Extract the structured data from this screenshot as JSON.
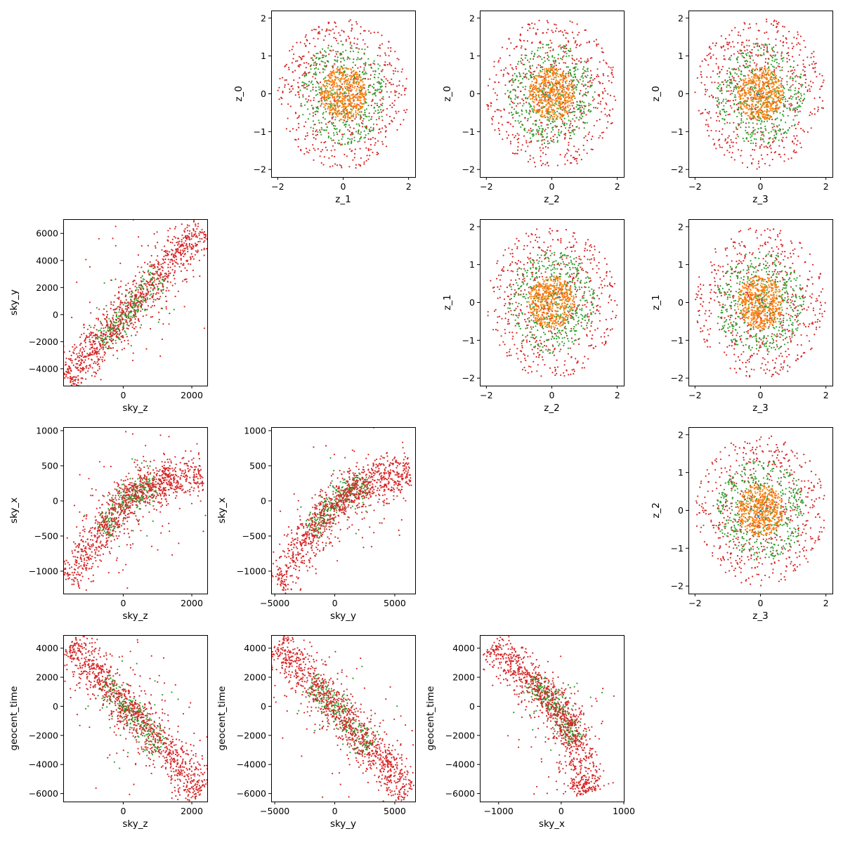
{
  "colors": {
    "red": "#d62728",
    "green": "#2ca02c",
    "orange": "#ff7f0e",
    "blue": "#1f77b4",
    "axis": "#000000"
  },
  "chart_data": [
    {
      "row": 0,
      "col": 1,
      "type": "scatter",
      "shape": "disk",
      "xlabel": "z_1",
      "ylabel": "z_0",
      "xlim": [
        -2.2,
        2.2
      ],
      "ylim": [
        -2.2,
        2.2
      ],
      "xticks": [
        -2,
        0,
        2
      ],
      "yticks": [
        -2,
        -1,
        0,
        1,
        2
      ],
      "radii": {
        "red": 2.0,
        "green": 1.35,
        "orange": 0.7
      },
      "counts": {
        "red": 600,
        "green": 450,
        "orange": 500
      }
    },
    {
      "row": 0,
      "col": 2,
      "type": "scatter",
      "shape": "disk",
      "xlabel": "z_2",
      "ylabel": "z_0",
      "xlim": [
        -2.2,
        2.2
      ],
      "ylim": [
        -2.2,
        2.2
      ],
      "xticks": [
        -2,
        0,
        2
      ],
      "yticks": [
        -2,
        -1,
        0,
        1,
        2
      ],
      "radii": {
        "red": 2.0,
        "green": 1.35,
        "orange": 0.7
      },
      "counts": {
        "red": 600,
        "green": 450,
        "orange": 500
      }
    },
    {
      "row": 0,
      "col": 3,
      "type": "scatter",
      "shape": "disk",
      "xlabel": "z_3",
      "ylabel": "z_0",
      "xlim": [
        -2.2,
        2.2
      ],
      "ylim": [
        -2.2,
        2.2
      ],
      "xticks": [
        -2,
        0,
        2
      ],
      "yticks": [
        -2,
        -1,
        0,
        1,
        2
      ],
      "radii": {
        "red": 2.0,
        "green": 1.35,
        "orange": 0.7
      },
      "counts": {
        "red": 600,
        "green": 450,
        "orange": 500
      }
    },
    {
      "row": 1,
      "col": 0,
      "type": "scatter",
      "shape": "band",
      "xlabel": "sky_z",
      "ylabel": "sky_y",
      "xlim": [
        -1750,
        2450
      ],
      "ylim": [
        -5250,
        7050
      ],
      "xticks": [
        0,
        2000
      ],
      "yticks": [
        -4000,
        -2000,
        0,
        2000,
        4000,
        6000
      ],
      "curve": [
        [
          -1650,
          -4850
        ],
        [
          2300,
          6400
        ]
      ],
      "spread": 180,
      "n": 1100
    },
    {
      "row": 1,
      "col": 2,
      "type": "scatter",
      "shape": "disk",
      "xlabel": "z_2",
      "ylabel": "z_1",
      "xlim": [
        -2.2,
        2.2
      ],
      "ylim": [
        -2.2,
        2.2
      ],
      "xticks": [
        -2,
        0,
        2
      ],
      "yticks": [
        -2,
        -1,
        0,
        1,
        2
      ],
      "radii": {
        "red": 2.0,
        "green": 1.35,
        "orange": 0.7
      },
      "counts": {
        "red": 600,
        "green": 450,
        "orange": 500
      }
    },
    {
      "row": 1,
      "col": 3,
      "type": "scatter",
      "shape": "disk",
      "xlabel": "z_3",
      "ylabel": "z_1",
      "xlim": [
        -2.2,
        2.2
      ],
      "ylim": [
        -2.2,
        2.2
      ],
      "xticks": [
        -2,
        0,
        2
      ],
      "yticks": [
        -2,
        -1,
        0,
        1,
        2
      ],
      "radii": {
        "red": 2.0,
        "green": 1.35,
        "orange": 0.7
      },
      "counts": {
        "red": 600,
        "green": 450,
        "orange": 500
      }
    },
    {
      "row": 2,
      "col": 0,
      "type": "scatter",
      "shape": "band",
      "xlabel": "sky_z",
      "ylabel": "sky_x",
      "xlim": [
        -1750,
        2450
      ],
      "ylim": [
        -1320,
        1050
      ],
      "xticks": [
        0,
        2000
      ],
      "yticks": [
        -1000,
        -500,
        0,
        500,
        1000
      ],
      "curve": [
        [
          -1600,
          -1150
        ],
        [
          -1000,
          -700
        ],
        [
          -500,
          -350
        ],
        [
          0,
          -30
        ],
        [
          500,
          170
        ],
        [
          1000,
          260
        ],
        [
          1500,
          320
        ],
        [
          2300,
          400
        ]
      ],
      "spread": 90,
      "n": 1100
    },
    {
      "row": 2,
      "col": 1,
      "type": "scatter",
      "shape": "band",
      "xlabel": "sky_y",
      "ylabel": "sky_x",
      "xlim": [
        -5300,
        6700
      ],
      "ylim": [
        -1320,
        1050
      ],
      "xticks": [
        -5000,
        0,
        5000
      ],
      "yticks": [
        -1000,
        -500,
        0,
        500,
        1000
      ],
      "curve": [
        [
          -4900,
          -1200
        ],
        [
          -3000,
          -700
        ],
        [
          -1500,
          -350
        ],
        [
          0,
          0
        ],
        [
          1500,
          160
        ],
        [
          3000,
          260
        ],
        [
          4500,
          330
        ],
        [
          6300,
          380
        ]
      ],
      "spread": 90,
      "n": 1100
    },
    {
      "row": 2,
      "col": 3,
      "type": "scatter",
      "shape": "disk",
      "xlabel": "z_3",
      "ylabel": "z_2",
      "xlim": [
        -2.2,
        2.2
      ],
      "ylim": [
        -2.2,
        2.2
      ],
      "xticks": [
        -2,
        0,
        2
      ],
      "yticks": [
        -2,
        -1,
        0,
        1,
        2
      ],
      "radii": {
        "red": 2.0,
        "green": 1.35,
        "orange": 0.7
      },
      "counts": {
        "red": 600,
        "green": 450,
        "orange": 500
      }
    },
    {
      "row": 3,
      "col": 0,
      "type": "scatter",
      "shape": "band",
      "xlabel": "sky_z",
      "ylabel": "geocent_time",
      "xlim": [
        -1750,
        2450
      ],
      "ylim": [
        -6550,
        4900
      ],
      "xticks": [
        0,
        2000
      ],
      "yticks": [
        -6000,
        -4000,
        -2000,
        0,
        2000,
        4000
      ],
      "curve": [
        [
          -1550,
          4300
        ],
        [
          2300,
          -5900
        ]
      ],
      "spread": 320,
      "n": 1100
    },
    {
      "row": 3,
      "col": 1,
      "type": "scatter",
      "shape": "band",
      "xlabel": "sky_y",
      "ylabel": "geocent_time",
      "xlim": [
        -5300,
        6700
      ],
      "ylim": [
        -6550,
        4900
      ],
      "xticks": [
        -5000,
        0,
        5000
      ],
      "yticks": [
        -6000,
        -4000,
        -2000,
        0,
        2000,
        4000
      ],
      "curve": [
        [
          -4800,
          4300
        ],
        [
          6300,
          -5900
        ]
      ],
      "spread": 320,
      "n": 1100
    },
    {
      "row": 3,
      "col": 2,
      "type": "scatter",
      "shape": "band",
      "xlabel": "sky_x",
      "ylabel": "geocent_time",
      "xlim": [
        -1300,
        1000
      ],
      "ylim": [
        -6550,
        4900
      ],
      "xticks": [
        -1000,
        0,
        1000
      ],
      "yticks": [
        -6000,
        -4000,
        -2000,
        0,
        2000,
        4000
      ],
      "curve": [
        [
          -1100,
          4300
        ],
        [
          -800,
          2900
        ],
        [
          -500,
          1800
        ],
        [
          -200,
          700
        ],
        [
          0,
          -400
        ],
        [
          150,
          -1600
        ],
        [
          250,
          -3000
        ],
        [
          350,
          -5000
        ],
        [
          400,
          -6000
        ]
      ],
      "spread": 110,
      "n": 1100
    }
  ]
}
